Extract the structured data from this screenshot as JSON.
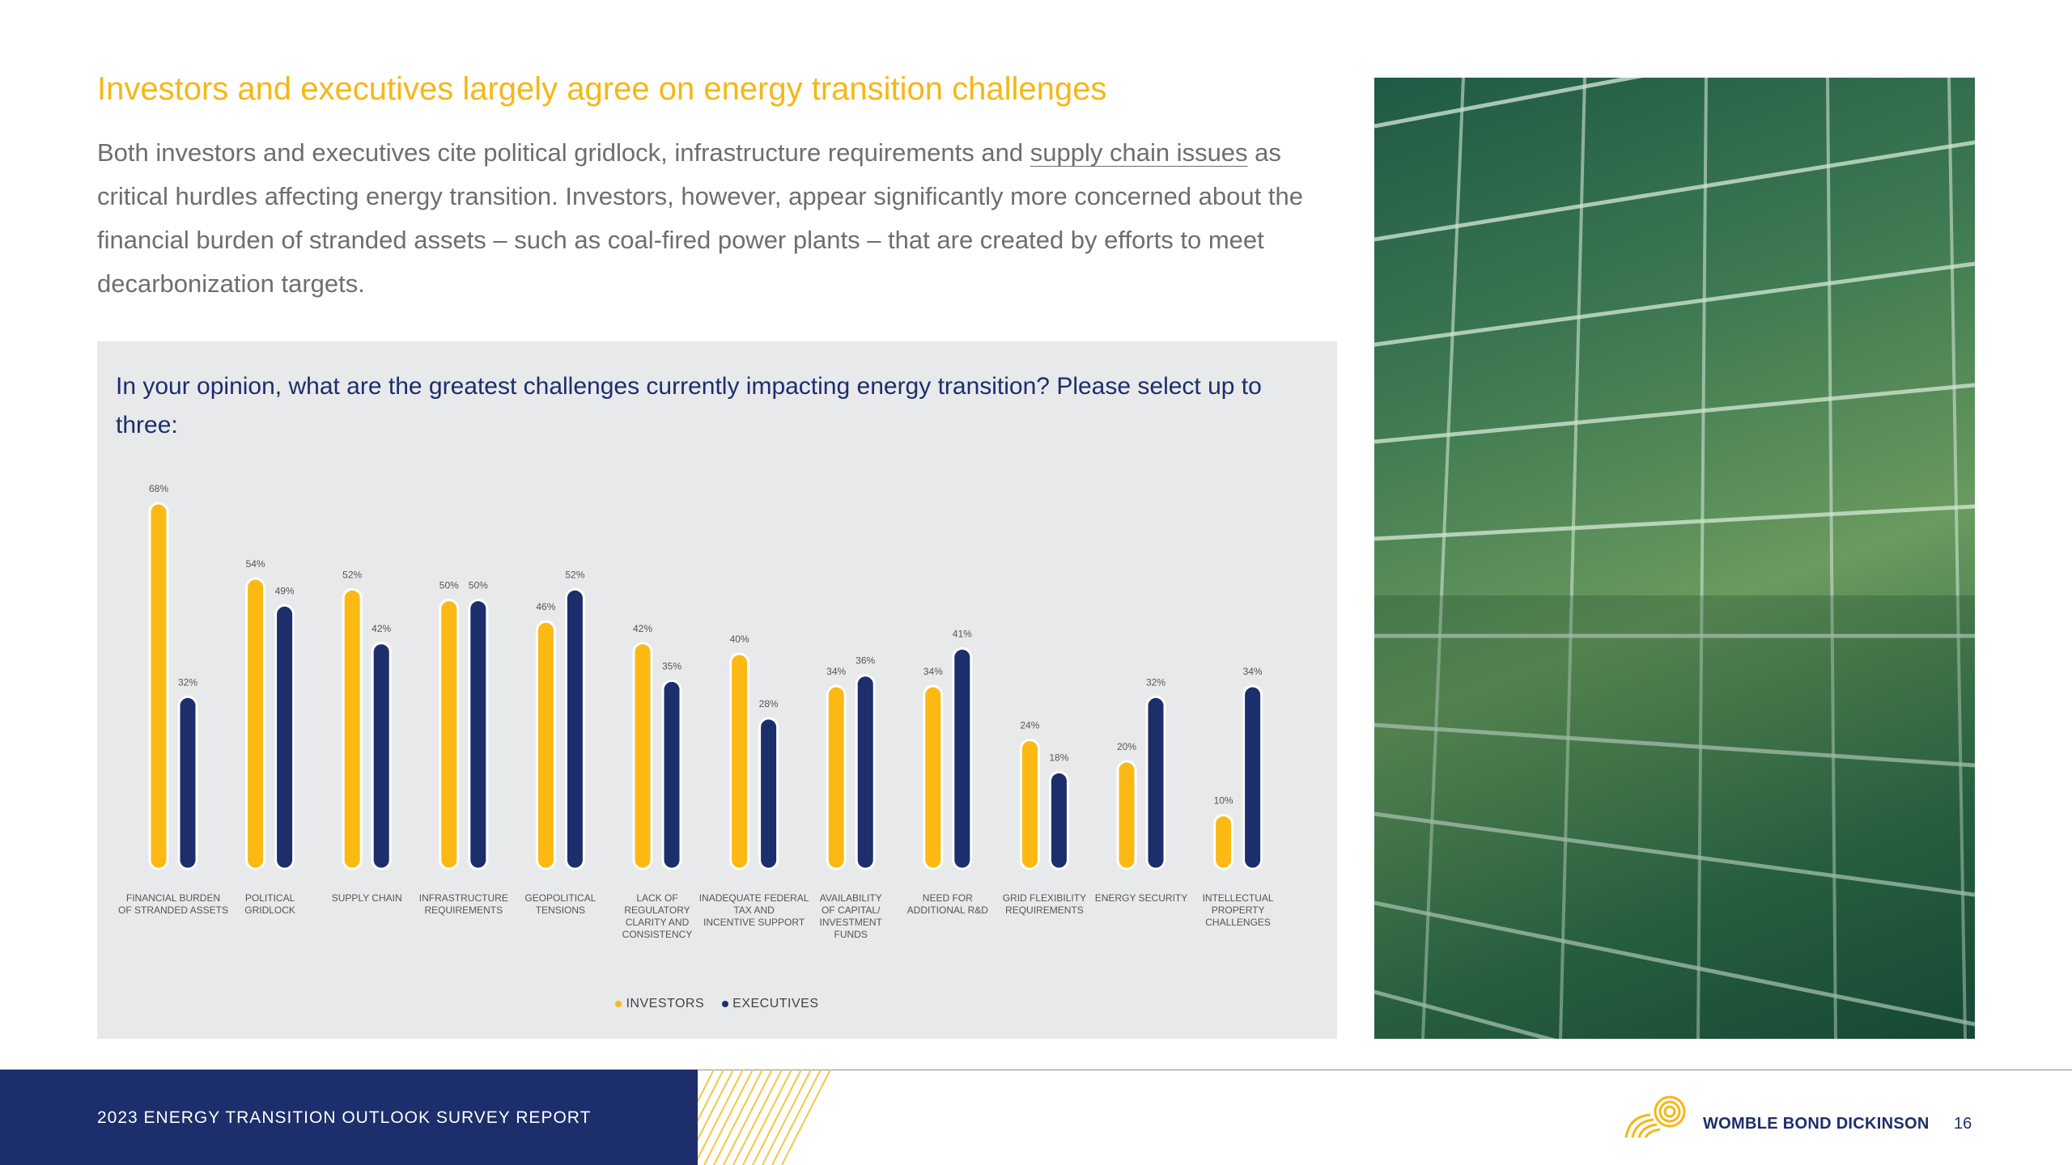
{
  "headline": "Investors and executives largely agree on energy transition challenges",
  "intro": {
    "before_link": "Both investors and executives cite political gridlock, infrastructure requirements and ",
    "link_text": "supply chain issues",
    "after_link": " as critical hurdles affecting energy transition. Investors, however, appear significantly more concerned about the financial burden of stranded assets – such as coal-fired power plants – that are created by efforts to meet decarbonization targets."
  },
  "chart_question": "In your opinion, what are the greatest challenges currently impacting energy transition? Please select up to three:",
  "chart_data": {
    "type": "bar",
    "categories": [
      [
        "FINANCIAL BURDEN",
        "OF STRANDED ASSETS"
      ],
      [
        "POLITICAL",
        "GRIDLOCK"
      ],
      [
        "SUPPLY CHAIN"
      ],
      [
        "INFRASTRUCTURE",
        "REQUIREMENTS"
      ],
      [
        "GEOPOLITICAL",
        "TENSIONS"
      ],
      [
        "LACK OF",
        "REGULATORY",
        "CLARITY AND",
        "CONSISTENCY"
      ],
      [
        "INADEQUATE FEDERAL",
        "TAX AND",
        "INCENTIVE SUPPORT"
      ],
      [
        "AVAILABILITY",
        "OF CAPITAL/",
        "INVESTMENT",
        "FUNDS"
      ],
      [
        "NEED FOR",
        "ADDITIONAL R&D"
      ],
      [
        "GRID FLEXIBILITY",
        "REQUIREMENTS"
      ],
      [
        "ENERGY SECURITY"
      ],
      [
        "INTELLECTUAL",
        "PROPERTY",
        "CHALLENGES"
      ]
    ],
    "series": [
      {
        "name": "INVESTORS",
        "color": "#fdb913",
        "values": [
          68,
          54,
          52,
          50,
          46,
          42,
          40,
          34,
          34,
          24,
          20,
          10
        ]
      },
      {
        "name": "EXECUTIVES",
        "color": "#1c2e6b",
        "values": [
          32,
          49,
          42,
          50,
          52,
          35,
          28,
          36,
          41,
          18,
          32,
          34
        ]
      }
    ],
    "value_suffix": "%",
    "ylim": [
      0,
      68
    ],
    "grid": false,
    "legend_position": "bottom-center"
  },
  "footer": {
    "report_title": "2023 ENERGY TRANSITION OUTLOOK SURVEY REPORT",
    "firm_name": "WOMBLE BOND DICKINSON",
    "page_number": "16"
  },
  "colors": {
    "accent_yellow": "#f5b717",
    "navy": "#1c2e6b",
    "panel_grey": "#e8e9eb",
    "body_text": "#6d6e71"
  },
  "icons": {
    "logo": "womble-bond-dickinson-logo",
    "photo": "glass-facade-photo"
  }
}
